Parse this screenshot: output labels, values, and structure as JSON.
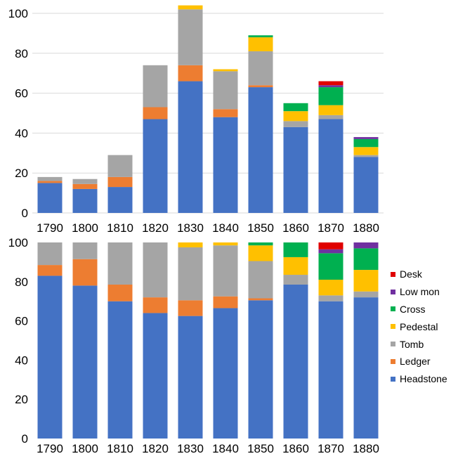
{
  "chart_data": [
    {
      "type": "bar",
      "stacked": true,
      "title": "",
      "xlabel": "",
      "ylabel": "",
      "ylim": [
        0,
        100
      ],
      "yticks": [
        0,
        20,
        40,
        60,
        80,
        100
      ],
      "grid": true,
      "categories": [
        "1790",
        "1800",
        "1810",
        "1820",
        "1830",
        "1840",
        "1850",
        "1860",
        "1870",
        "1880"
      ],
      "series": [
        {
          "name": "Headstone",
          "color": "#4472C4",
          "values": [
            15,
            12,
            13,
            47,
            66,
            48,
            63,
            43,
            47,
            28
          ]
        },
        {
          "name": "Ledger",
          "color": "#ED7D31",
          "values": [
            1,
            2.5,
            5,
            6,
            8,
            4,
            1,
            0,
            0,
            0
          ]
        },
        {
          "name": "Tomb",
          "color": "#A5A5A5",
          "values": [
            2,
            2.5,
            11,
            21,
            28,
            19,
            17,
            3,
            2,
            1
          ]
        },
        {
          "name": "Pedestal",
          "color": "#FFC000",
          "values": [
            0,
            0,
            0,
            0,
            2,
            1,
            7,
            5,
            5,
            4
          ]
        },
        {
          "name": "Cross",
          "color": "#00B050",
          "values": [
            0,
            0,
            0,
            0,
            0,
            0,
            1,
            4,
            9,
            4
          ]
        },
        {
          "name": "Low mon",
          "color": "#7030A0",
          "values": [
            0,
            0,
            0,
            0,
            0,
            0,
            0,
            0,
            1,
            1
          ]
        },
        {
          "name": "Desk",
          "color": "#E00000",
          "values": [
            0,
            0,
            0,
            0,
            0,
            0,
            0,
            0,
            2,
            0
          ]
        }
      ]
    },
    {
      "type": "bar",
      "stacked": true,
      "percent": true,
      "title": "",
      "xlabel": "",
      "ylabel": "",
      "ylim": [
        0,
        100
      ],
      "yticks": [
        0,
        20,
        40,
        60,
        80,
        100
      ],
      "grid": false,
      "legend_position": "right",
      "categories": [
        "1790",
        "1800",
        "1810",
        "1820",
        "1830",
        "1840",
        "1850",
        "1860",
        "1870",
        "1880"
      ],
      "series": [
        {
          "name": "Headstone",
          "color": "#4472C4",
          "values": [
            83,
            78,
            70,
            64,
            62.5,
            66.5,
            70.5,
            78.5,
            70,
            72
          ]
        },
        {
          "name": "Ledger",
          "color": "#ED7D31",
          "values": [
            5.5,
            13.5,
            8.5,
            8,
            8,
            6,
            1,
            0,
            0,
            0
          ]
        },
        {
          "name": "Tomb",
          "color": "#A5A5A5",
          "values": [
            11.5,
            8.5,
            21.5,
            28,
            27,
            26,
            19,
            5,
            3,
            3
          ]
        },
        {
          "name": "Pedestal",
          "color": "#FFC000",
          "values": [
            0,
            0,
            0,
            0,
            2.5,
            1.5,
            8,
            9,
            8,
            11
          ]
        },
        {
          "name": "Cross",
          "color": "#00B050",
          "values": [
            0,
            0,
            0,
            0,
            0,
            0,
            1.5,
            7.5,
            13.5,
            11
          ]
        },
        {
          "name": "Low mon",
          "color": "#7030A0",
          "values": [
            0,
            0,
            0,
            0,
            0,
            0,
            0,
            0,
            2,
            3
          ]
        },
        {
          "name": "Desk",
          "color": "#E00000",
          "values": [
            0,
            0,
            0,
            0,
            0,
            0,
            0,
            0,
            3.5,
            0
          ]
        }
      ]
    }
  ],
  "legend": {
    "items": [
      {
        "label": "Desk",
        "color": "#E00000"
      },
      {
        "label": "Low mon",
        "color": "#7030A0"
      },
      {
        "label": "Cross",
        "color": "#00B050"
      },
      {
        "label": "Pedestal",
        "color": "#FFC000"
      },
      {
        "label": "Tomb",
        "color": "#A5A5A5"
      },
      {
        "label": "Ledger",
        "color": "#ED7D31"
      },
      {
        "label": "Headstone",
        "color": "#4472C4"
      }
    ]
  }
}
